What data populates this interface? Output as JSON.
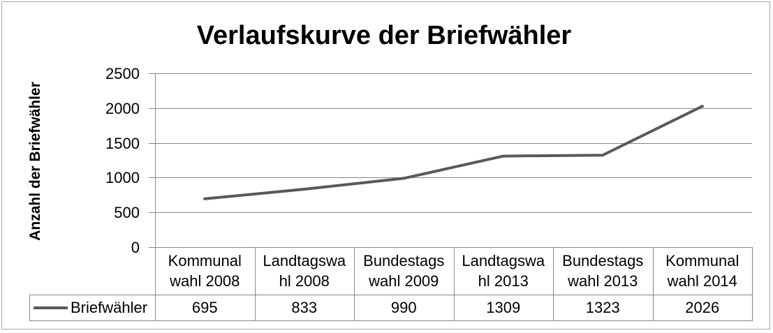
{
  "chart_data": {
    "type": "line",
    "title": "Verlaufskurve der Briefwähler",
    "ylabel": "Anzahl der Briefwähler",
    "categories": [
      "Kommunal\nwahl 2008",
      "Landtagswa\nhl 2008",
      "Bundestags\nwahl 2009",
      "Landtagswa\nhl 2013",
      "Bundestags\nwahl 2013",
      "Kommunal\nwahl 2014"
    ],
    "series": [
      {
        "name": "Briefwähler",
        "values": [
          695,
          833,
          990,
          1309,
          1323,
          2026
        ],
        "color": "#595959"
      }
    ],
    "ylim": [
      0,
      2500
    ],
    "yticks": [
      0,
      500,
      1000,
      1500,
      2000,
      2500
    ],
    "grid": true,
    "legend": "data-table",
    "data_table": true
  },
  "colors": {
    "gridline": "#868686",
    "frame": "#a6a6a6",
    "text": "#000000"
  }
}
